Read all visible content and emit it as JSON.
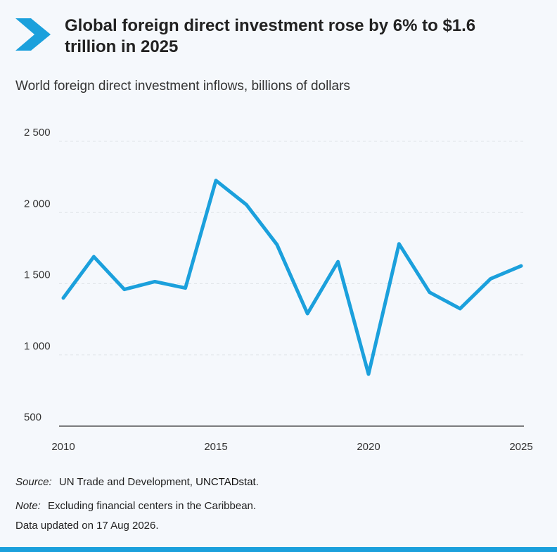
{
  "header": {
    "title": "Global foreign direct investment rose by 6% to $1.6 trillion in 2025",
    "logo_icon": "chevron-right-icon",
    "accent_color": "#1ba0dc"
  },
  "chart_data": {
    "type": "line",
    "subtitle": "World foreign direct investment inflows, billions of dollars",
    "x": [
      2010,
      2011,
      2012,
      2013,
      2014,
      2015,
      2016,
      2017,
      2018,
      2019,
      2020,
      2021,
      2022,
      2023,
      2024,
      2025
    ],
    "series": [
      {
        "name": "",
        "values": [
          1400,
          1690,
          1460,
          1515,
          1470,
          2225,
          2055,
          1775,
          1290,
          1655,
          865,
          1780,
          1440,
          1325,
          1535,
          1625
        ],
        "color": "#1ba0dc"
      }
    ],
    "xticks": [
      "2010",
      "2015",
      "2020",
      "2025"
    ],
    "yticks": [
      "2 500",
      "2 000",
      "1 500",
      "1 000",
      "500"
    ],
    "ylim": [
      500,
      2500
    ],
    "xlim": [
      2010,
      2025
    ],
    "grid": true
  },
  "footer": {
    "source_label": "Source:",
    "source_text": "UN Trade and Development,",
    "source_link": "UNCTADstat",
    "source_end": ".",
    "note_label": "Note:",
    "note_text": "Excluding financial centers in the Caribbean.",
    "updated": "Data updated on 17 Aug 2026."
  }
}
